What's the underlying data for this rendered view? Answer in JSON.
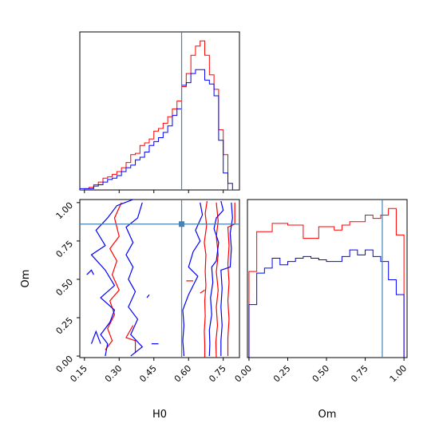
{
  "chart_data": {
    "type": "corner",
    "parameters": [
      "H0",
      "Om"
    ],
    "truths": {
      "H0": 0.57,
      "Om": 0.86
    },
    "colors": {
      "series_a": "#ff0000",
      "series_b": "#0000ff",
      "truth": "#4682b4"
    },
    "grid": false,
    "ranges": {
      "H0": [
        0.13,
        0.82
      ],
      "Om": [
        -0.01,
        1.02
      ]
    },
    "ticks": {
      "H0": {
        "values": [
          0.15,
          0.3,
          0.45,
          0.6,
          0.75
        ],
        "labels": [
          "0.15",
          "0.30",
          "0.45",
          "0.60",
          "0.75"
        ]
      },
      "Om": {
        "values": [
          0.0,
          0.25,
          0.5,
          0.75,
          1.0
        ],
        "labels": [
          "0.00",
          "0.25",
          "0.50",
          "0.75",
          "1.00"
        ]
      }
    },
    "hist_H0": {
      "bins": [
        0.13,
        0.15,
        0.17,
        0.19,
        0.21,
        0.23,
        0.25,
        0.27,
        0.29,
        0.31,
        0.33,
        0.35,
        0.37,
        0.39,
        0.41,
        0.43,
        0.45,
        0.47,
        0.49,
        0.51,
        0.53,
        0.55,
        0.57,
        0.59,
        0.61,
        0.63,
        0.65,
        0.67,
        0.69,
        0.71,
        0.73,
        0.75,
        0.77,
        0.79,
        0.81
      ],
      "series": [
        {
          "key": "series_a",
          "values": [
            0,
            1,
            2,
            4,
            6,
            9,
            10,
            12,
            14,
            17,
            21,
            27,
            28,
            34,
            36,
            39,
            45,
            47,
            51,
            56,
            62,
            68,
            79,
            89,
            103,
            110,
            114,
            103,
            88,
            77,
            46,
            27,
            0,
            0
          ]
        },
        {
          "key": "series_b",
          "values": [
            1,
            1,
            1,
            3,
            4,
            6,
            8,
            9,
            11,
            14,
            17,
            19,
            23,
            25,
            29,
            34,
            37,
            40,
            44,
            49,
            57,
            62,
            80,
            82,
            89,
            92,
            92,
            84,
            81,
            72,
            38,
            13,
            5,
            0
          ]
        }
      ]
    },
    "hist_Om": {
      "bins": [
        0.0,
        0.05,
        0.1,
        0.15,
        0.2,
        0.25,
        0.3,
        0.35,
        0.4,
        0.45,
        0.5,
        0.55,
        0.6,
        0.65,
        0.7,
        0.75,
        0.8,
        0.85,
        0.9,
        0.95,
        1.0
      ],
      "series": [
        {
          "key": "series_a",
          "values": [
            52,
            76,
            76,
            81,
            81,
            80,
            80,
            72,
            72,
            79,
            79,
            77,
            80,
            82,
            82,
            86,
            84,
            86,
            90,
            74
          ]
        },
        {
          "key": "series_b",
          "values": [
            32,
            51,
            54,
            60,
            56,
            58,
            60,
            61,
            60,
            59,
            58,
            58,
            61,
            65,
            62,
            65,
            61,
            58,
            47,
            38
          ]
        }
      ]
    },
    "contours": [
      {
        "key": "series_a",
        "lines": [
          [
            [
              0.67,
              -0.01
            ],
            [
              0.67,
              0.08
            ],
            [
              0.668,
              0.16
            ],
            [
              0.672,
              0.26
            ],
            [
              0.67,
              0.36
            ],
            [
              0.675,
              0.46
            ],
            [
              0.672,
              0.55
            ],
            [
              0.675,
              0.66
            ],
            [
              0.668,
              0.74
            ],
            [
              0.678,
              0.85
            ],
            [
              0.672,
              0.93
            ],
            [
              0.68,
              1.01
            ]
          ],
          [
            [
              0.72,
              -0.01
            ],
            [
              0.718,
              0.09
            ],
            [
              0.725,
              0.2
            ],
            [
              0.72,
              0.32
            ],
            [
              0.728,
              0.43
            ],
            [
              0.72,
              0.55
            ],
            [
              0.728,
              0.66
            ],
            [
              0.72,
              0.78
            ],
            [
              0.728,
              0.88
            ],
            [
              0.72,
              1.0
            ]
          ],
          [
            [
              0.77,
              0.0
            ],
            [
              0.77,
              0.12
            ],
            [
              0.775,
              0.24
            ],
            [
              0.77,
              0.36
            ],
            [
              0.775,
              0.48
            ],
            [
              0.77,
              0.6
            ],
            [
              0.775,
              0.72
            ],
            [
              0.77,
              0.84
            ],
            [
              0.8,
              0.86
            ],
            [
              0.8,
              1.0
            ]
          ],
          [
            [
              0.24,
              0.04
            ],
            [
              0.27,
              0.1
            ],
            [
              0.25,
              0.18
            ],
            [
              0.28,
              0.27
            ],
            [
              0.26,
              0.36
            ],
            [
              0.3,
              0.43
            ],
            [
              0.27,
              0.53
            ],
            [
              0.29,
              0.62
            ],
            [
              0.26,
              0.7
            ],
            [
              0.3,
              0.78
            ],
            [
              0.28,
              0.9
            ],
            [
              0.31,
              1.0
            ]
          ],
          [
            [
              0.37,
              0.02
            ],
            [
              0.37,
              0.1
            ],
            [
              0.33,
              0.12
            ],
            [
              0.36,
              0.2
            ]
          ],
          [
            [
              0.59,
              0.49
            ],
            [
              0.62,
              0.49
            ]
          ],
          [
            [
              0.65,
              0.41
            ],
            [
              0.67,
              0.43
            ]
          ]
        ]
      },
      {
        "key": "series_b",
        "lines": [
          [
            [
              0.69,
              0.0
            ],
            [
              0.692,
              0.08
            ],
            [
              0.69,
              0.17
            ],
            [
              0.7,
              0.27
            ],
            [
              0.695,
              0.38
            ],
            [
              0.705,
              0.48
            ],
            [
              0.7,
              0.58
            ],
            [
              0.72,
              0.62
            ],
            [
              0.73,
              0.74
            ],
            [
              0.71,
              0.83
            ],
            [
              0.72,
              0.9
            ],
            [
              0.75,
              0.95
            ],
            [
              0.74,
              1.01
            ]
          ],
          [
            [
              0.74,
              0.0
            ],
            [
              0.74,
              0.1
            ],
            [
              0.745,
              0.2
            ],
            [
              0.74,
              0.32
            ],
            [
              0.745,
              0.44
            ],
            [
              0.74,
              0.56
            ],
            [
              0.78,
              0.58
            ],
            [
              0.785,
              0.7
            ],
            [
              0.78,
              0.8
            ],
            [
              0.79,
              0.9
            ],
            [
              0.785,
              1.0
            ]
          ],
          [
            [
              0.58,
              0.0
            ],
            [
              0.575,
              0.1
            ],
            [
              0.58,
              0.2
            ],
            [
              0.575,
              0.3
            ],
            [
              0.6,
              0.4
            ],
            [
              0.62,
              0.46
            ],
            [
              0.64,
              0.52
            ],
            [
              0.6,
              0.58
            ],
            [
              0.62,
              0.68
            ],
            [
              0.65,
              0.75
            ],
            [
              0.63,
              0.82
            ],
            [
              0.66,
              0.92
            ],
            [
              0.65,
              1.0
            ]
          ],
          [
            [
              0.24,
              0.0
            ],
            [
              0.25,
              0.08
            ],
            [
              0.22,
              0.14
            ],
            [
              0.26,
              0.22
            ],
            [
              0.28,
              0.3
            ],
            [
              0.22,
              0.38
            ],
            [
              0.28,
              0.46
            ],
            [
              0.24,
              0.56
            ],
            [
              0.18,
              0.66
            ],
            [
              0.24,
              0.72
            ],
            [
              0.2,
              0.82
            ],
            [
              0.25,
              0.9
            ],
            [
              0.29,
              0.98
            ],
            [
              0.36,
              1.02
            ]
          ],
          [
            [
              0.4,
              1.0
            ],
            [
              0.38,
              0.9
            ],
            [
              0.33,
              0.84
            ],
            [
              0.36,
              0.74
            ],
            [
              0.33,
              0.66
            ],
            [
              0.36,
              0.58
            ],
            [
              0.34,
              0.5
            ],
            [
              0.37,
              0.42
            ],
            [
              0.34,
              0.32
            ],
            [
              0.38,
              0.24
            ],
            [
              0.35,
              0.14
            ],
            [
              0.4,
              0.06
            ],
            [
              0.35,
              0.0
            ]
          ],
          [
            [
              0.18,
              0.08
            ],
            [
              0.2,
              0.16
            ],
            [
              0.22,
              0.08
            ]
          ],
          [
            [
              0.16,
              0.53
            ],
            [
              0.18,
              0.56
            ],
            [
              0.19,
              0.53
            ]
          ],
          [
            [
              0.44,
              0.08
            ],
            [
              0.47,
              0.08
            ]
          ],
          [
            [
              0.42,
              0.38
            ],
            [
              0.43,
              0.4
            ]
          ]
        ]
      }
    ],
    "xlabels": {
      "H0": "H0",
      "Om": "Om"
    },
    "ylabel": "Om"
  }
}
